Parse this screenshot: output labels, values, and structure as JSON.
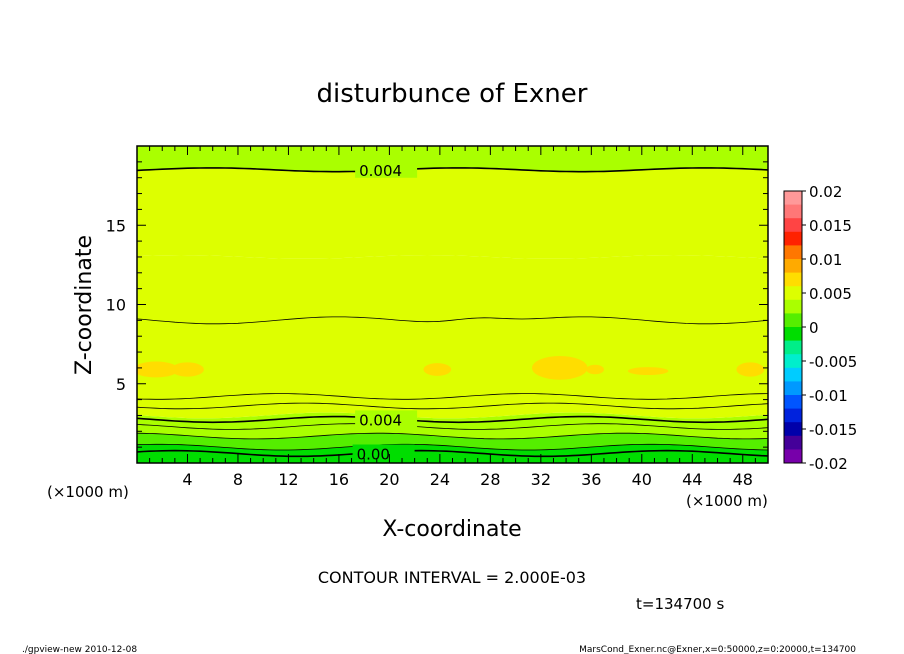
{
  "chart_data": {
    "type": "heatmap",
    "title": "disturbunce of Exner",
    "xlabel": "X-coordinate",
    "ylabel": "Z-coordinate",
    "x_unit_left": "(×1000 m)",
    "x_unit_right": "(×1000 m)",
    "xlim": [
      0,
      50
    ],
    "ylim": [
      0,
      20
    ],
    "x_ticks": [
      "4",
      "8",
      "12",
      "16",
      "20",
      "24",
      "28",
      "32",
      "36",
      "40",
      "44",
      "48"
    ],
    "x_tick_values": [
      4,
      8,
      12,
      16,
      20,
      24,
      28,
      32,
      36,
      40,
      44,
      48
    ],
    "y_ticks": [
      "5",
      "10",
      "15"
    ],
    "y_tick_values": [
      5,
      10,
      15
    ],
    "contour_interval_text": "CONTOUR INTERVAL = 2.000E-03",
    "time_text": "t=134700 s",
    "contour_labels": [
      {
        "text": "0.004",
        "x": 17.6,
        "z": 18.5
      },
      {
        "text": "0.004",
        "x": 17.6,
        "z": 2.75
      },
      {
        "text": "0.00",
        "x": 17.4,
        "z": 0.6
      }
    ],
    "field_bands": [
      {
        "z0": 0.0,
        "z1": 0.6,
        "value": -0.002
      },
      {
        "z0": 0.6,
        "z1": 1.0,
        "value": 0.0
      },
      {
        "z0": 1.0,
        "z1": 1.7,
        "value": 0.0015
      },
      {
        "z0": 1.7,
        "z1": 2.3,
        "value": 0.0025
      },
      {
        "z0": 2.3,
        "z1": 3.0,
        "value": 0.0035
      },
      {
        "z0": 3.0,
        "z1": 4.2,
        "value": 0.0045
      },
      {
        "z0": 4.2,
        "z1": 9.0,
        "value": 0.0058
      },
      {
        "z0": 9.0,
        "z1": 13.0,
        "value": 0.0052
      },
      {
        "z0": 13.0,
        "z1": 18.5,
        "value": 0.0045
      },
      {
        "z0": 18.5,
        "z1": 20.0,
        "value": 0.0038
      }
    ],
    "colorbar": {
      "labels": [
        "0.02",
        "0.015",
        "0.01",
        "0.005",
        "0",
        "-0.005",
        "-0.01",
        "-0.015",
        "-0.02"
      ],
      "colors": [
        "#ff9999",
        "#ff7777",
        "#ff4444",
        "#ff2200",
        "#ff7700",
        "#ffaa00",
        "#ffdd00",
        "#ddff00",
        "#aaff00",
        "#55ee00",
        "#00dd00",
        "#00ee88",
        "#00eecc",
        "#00ccff",
        "#0099ff",
        "#0055ff",
        "#0022dd",
        "#0000aa",
        "#440099",
        "#7700aa"
      ]
    }
  },
  "footer": {
    "left": "./gpview-new   2010-12-08",
    "right": "MarsCond_Exner.nc@Exner,x=0:50000,z=0:20000,t=134700"
  }
}
